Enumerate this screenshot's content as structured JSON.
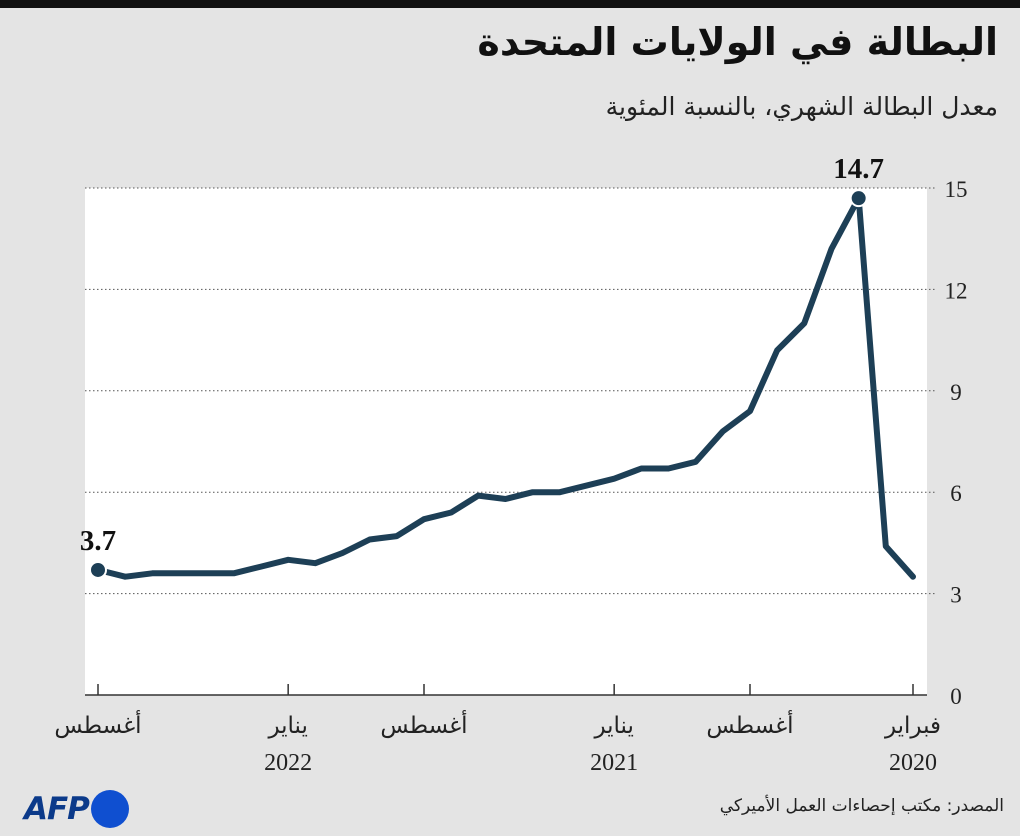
{
  "header": {
    "title": "البطالة في الولايات المتحدة",
    "subtitle": "معدل البطالة الشهري، بالنسبة المئوية"
  },
  "footer": {
    "source": "المصدر: مكتب إحصاءات العمل الأميركي",
    "logo_text": "AFP"
  },
  "colors": {
    "background": "#e4e4e4",
    "plot_background": "#ffffff",
    "line": "#1d3f56",
    "text": "#111111"
  },
  "chart_data": {
    "type": "line",
    "title": "البطالة في الولايات المتحدة",
    "subtitle": "معدل البطالة الشهري، بالنسبة المئوية",
    "x_direction": "right-to-left",
    "x": [
      "2020-02",
      "2020-03",
      "2020-04",
      "2020-05",
      "2020-06",
      "2020-07",
      "2020-08",
      "2020-09",
      "2020-10",
      "2020-11",
      "2020-12",
      "2021-01",
      "2021-02",
      "2021-03",
      "2021-04",
      "2021-05",
      "2021-06",
      "2021-07",
      "2021-08",
      "2021-09",
      "2021-10",
      "2021-11",
      "2021-12",
      "2022-01",
      "2022-02",
      "2022-03",
      "2022-04",
      "2022-05",
      "2022-06",
      "2022-07",
      "2022-08"
    ],
    "series": [
      {
        "values": [
          3.5,
          4.4,
          14.7,
          13.2,
          11.0,
          10.2,
          8.4,
          7.8,
          6.9,
          6.7,
          6.7,
          6.4,
          6.2,
          6.0,
          6.0,
          5.8,
          5.9,
          5.4,
          5.2,
          4.7,
          4.6,
          4.2,
          3.9,
          4.0,
          3.8,
          3.6,
          3.6,
          3.6,
          3.6,
          3.5,
          3.7
        ]
      }
    ],
    "ylim": [
      0,
      15
    ],
    "yticks": [
      "0",
      "3",
      "6",
      "9",
      "12",
      "15"
    ],
    "y_axis_side": "right",
    "grid": "horizontal-dotted",
    "xticks": [
      {
        "x": "2020-02",
        "label": "فبراير",
        "year": "2020"
      },
      {
        "x": "2020-08",
        "label": "أغسطس",
        "year": ""
      },
      {
        "x": "2021-01",
        "label": "يناير",
        "year": "2021"
      },
      {
        "x": "2021-08",
        "label": "أغسطس",
        "year": ""
      },
      {
        "x": "2022-01",
        "label": "يناير",
        "year": "2022"
      },
      {
        "x": "2022-08",
        "label": "أغسطس",
        "year": ""
      }
    ],
    "annotations": [
      {
        "x": "2020-04",
        "value": "14.7"
      },
      {
        "x": "2022-08",
        "value": "3.7"
      }
    ]
  }
}
